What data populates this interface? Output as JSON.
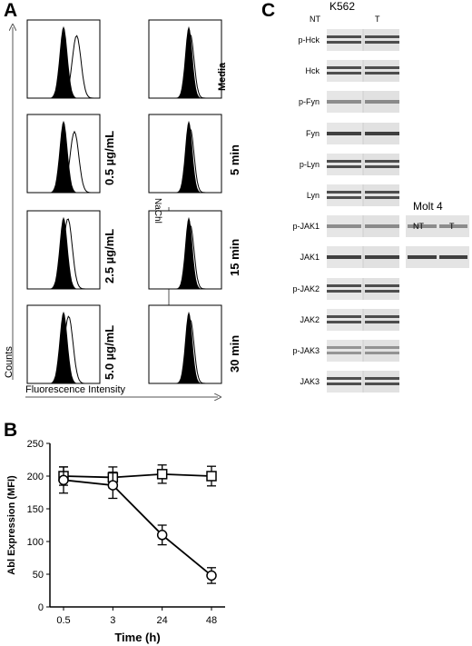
{
  "panels": {
    "a": "A",
    "b": "B",
    "c": "C"
  },
  "panel_a": {
    "left_column_labels": [
      "0.5 µg/mL",
      "2.5 µg/mL",
      "5.0 µg/mL"
    ],
    "right_column_labels": [
      "Media",
      "5 min",
      "15 min",
      "30 min"
    ],
    "treatment_label": "NaChl",
    "y_axis_label": "Counts",
    "x_axis_label": "Fluorescence Intensity"
  },
  "panel_c": {
    "cell_line_main": "K562",
    "lane_headers": [
      "NT",
      "T"
    ],
    "blot_labels": [
      "p-Hck",
      "Hck",
      "p-Fyn",
      "Fyn",
      "p-Lyn",
      "Lyn",
      "p-JAK1",
      "JAK1",
      "p-JAK2",
      "JAK2",
      "p-JAK3",
      "JAK3"
    ],
    "cell_line_secondary": "Molt 4",
    "secondary_lane_headers": [
      "NT",
      "T"
    ]
  },
  "chart_data": {
    "type": "line",
    "xlabel": "Time (h)",
    "ylabel": "Abl Expression (MFI)",
    "categories": [
      "0.5",
      "3",
      "24",
      "48"
    ],
    "ylim": [
      0,
      250
    ],
    "yticks": [
      0,
      50,
      100,
      150,
      200,
      250
    ],
    "series": [
      {
        "marker": "square",
        "values": [
          200,
          198,
          203,
          200
        ],
        "errors": [
          14,
          16,
          14,
          15
        ]
      },
      {
        "marker": "circle",
        "values": [
          194,
          186,
          110,
          48
        ],
        "errors": [
          20,
          20,
          15,
          12
        ]
      }
    ]
  }
}
